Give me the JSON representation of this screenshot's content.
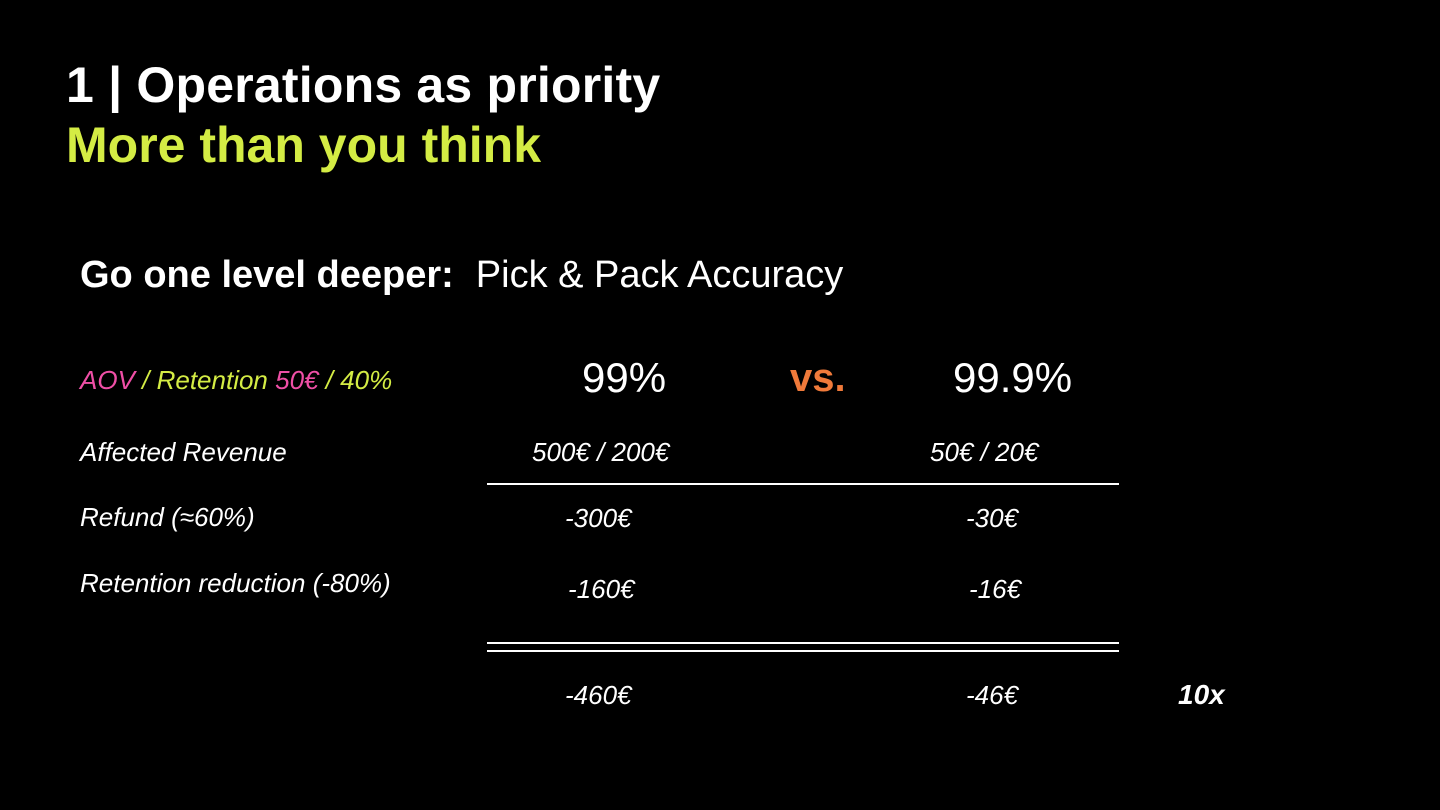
{
  "header": {
    "title": "1 | Operations as priority",
    "subtitle": "More than you think"
  },
  "lead": {
    "bold": "Go one level deeper:",
    "text": "Pick & Pack Accuracy"
  },
  "table": {
    "aov_label": {
      "aov": "AOV",
      "sep": " / Retention ",
      "aov_value": "50€",
      "sep2": " / 40%"
    },
    "columns": {
      "left": "99%",
      "vs": "vs.",
      "right": "99.9%"
    },
    "rows": [
      {
        "label": "Affected Revenue",
        "left": "500€   / 200€",
        "right": "50€   / 20€"
      },
      {
        "label": "Refund (≈60%)",
        "left": "-300€",
        "right": "-30€"
      },
      {
        "label": "Retention reduction (-80%)",
        "left": "-160€",
        "right": "-16€"
      }
    ],
    "totals": {
      "left": "-460€",
      "right": "-46€"
    },
    "factor": "10x"
  },
  "colors": {
    "background": "#000000",
    "accent_yellow": "#d4ec44",
    "accent_pink": "#ef4fa6",
    "accent_orange": "#f07a3a",
    "text": "#ffffff"
  }
}
